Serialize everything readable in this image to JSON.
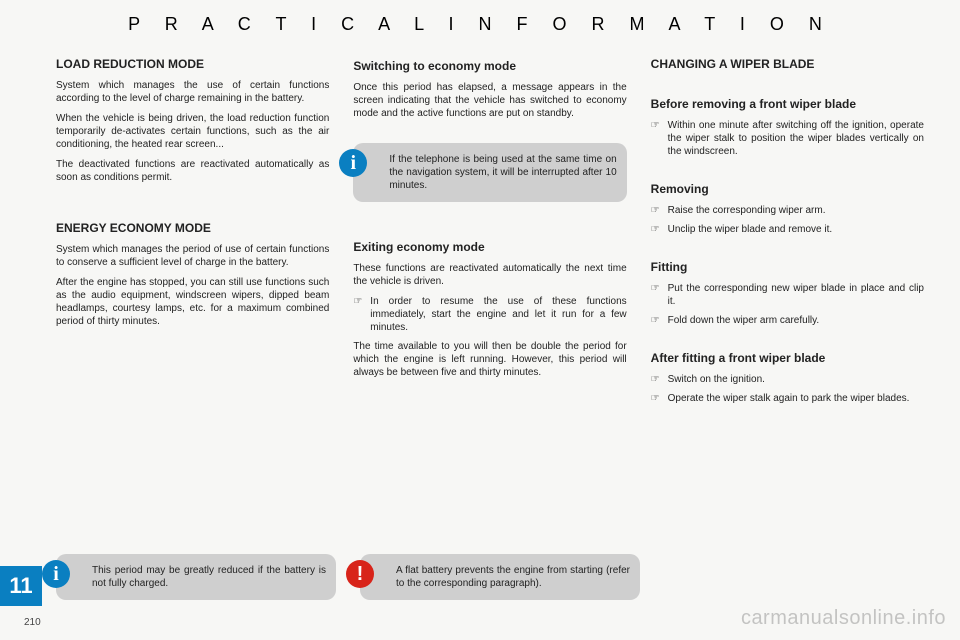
{
  "header": "P R A C T I C A L   I N F O R M A T I O N",
  "section_number": "11",
  "page_number": "210",
  "watermark": "carmanualsonline.info",
  "col1": {
    "h1": "LOAD REDUCTION MODE",
    "p1": "System which manages the use of certain functions according to the level of charge remaining in the battery.",
    "p2": "When the vehicle is being driven, the load reduction function temporarily de-activates certain functions, such as the air conditioning, the heated rear screen...",
    "p3": "The deactivated functions are reactivated automatically as soon as conditions permit.",
    "h2": "ENERGY ECONOMY MODE",
    "p4": "System which manages the period of use of certain functions to conserve a sufficient level of charge in the battery.",
    "p5": "After the engine has stopped, you can still use functions such as the audio equipment, windscreen wipers, dipped beam headlamps, courtesy lamps, etc. for a maximum combined period of thirty minutes.",
    "callout": "This period may be greatly reduced if the battery is not fully charged."
  },
  "col2": {
    "h1": "Switching to economy mode",
    "p1": "Once this period has elapsed, a message appears in the screen indicating that the vehicle has switched to economy mode and the active functions are put on standby.",
    "callout1": "If the telephone is being used at the same time on the navigation system, it will be interrupted after 10 minutes.",
    "h2": "Exiting economy mode",
    "p2": "These functions are reactivated automatically the next time the vehicle is driven.",
    "b1": "In order to resume the use of these functions immediately, start the engine and let it run for a few minutes.",
    "p3": "The time available to you will then be double the period for which the engine is left running. However, this period will always be between five and thirty minutes.",
    "callout2": "A flat battery prevents the engine from starting (refer to the corresponding paragraph)."
  },
  "col3": {
    "h1": "CHANGING A WIPER BLADE",
    "h2": "Before removing a front wiper blade",
    "b1": "Within one minute after switching off the ignition, operate the wiper stalk to position the wiper blades vertically on the windscreen.",
    "h3": "Removing",
    "b2": "Raise the corresponding wiper arm.",
    "b3": "Unclip the wiper blade and remove it.",
    "h4": "Fitting",
    "b4": "Put the corresponding new wiper blade in place and clip it.",
    "b5": "Fold down the wiper arm carefully.",
    "h5": "After fitting a front wiper blade",
    "b6": "Switch on the ignition.",
    "b7": "Operate the wiper stalk again to park the wiper blades."
  }
}
